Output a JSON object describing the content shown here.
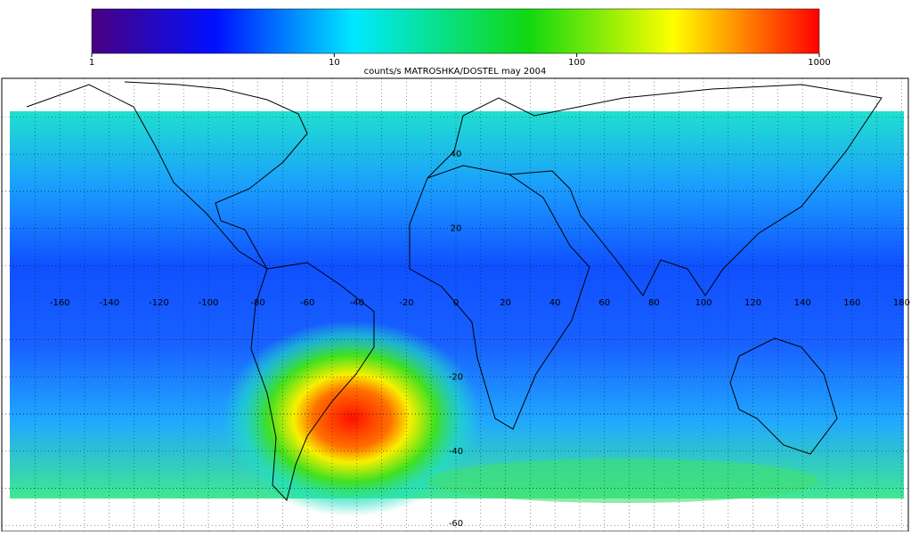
{
  "colorbar": {
    "title": "counts/s MATROSHKA/DOSTEL may 2004",
    "ticks": [
      1,
      10,
      100,
      1000
    ],
    "lim": [
      1,
      1000
    ],
    "log": true
  },
  "map": {
    "lon_ticks": [
      -160,
      -140,
      -120,
      -100,
      -80,
      -60,
      -40,
      -20,
      0,
      20,
      40,
      60,
      80,
      100,
      120,
      140,
      160,
      180
    ],
    "lat_ticks": [
      40,
      20,
      -20,
      -40,
      -60
    ]
  }
}
